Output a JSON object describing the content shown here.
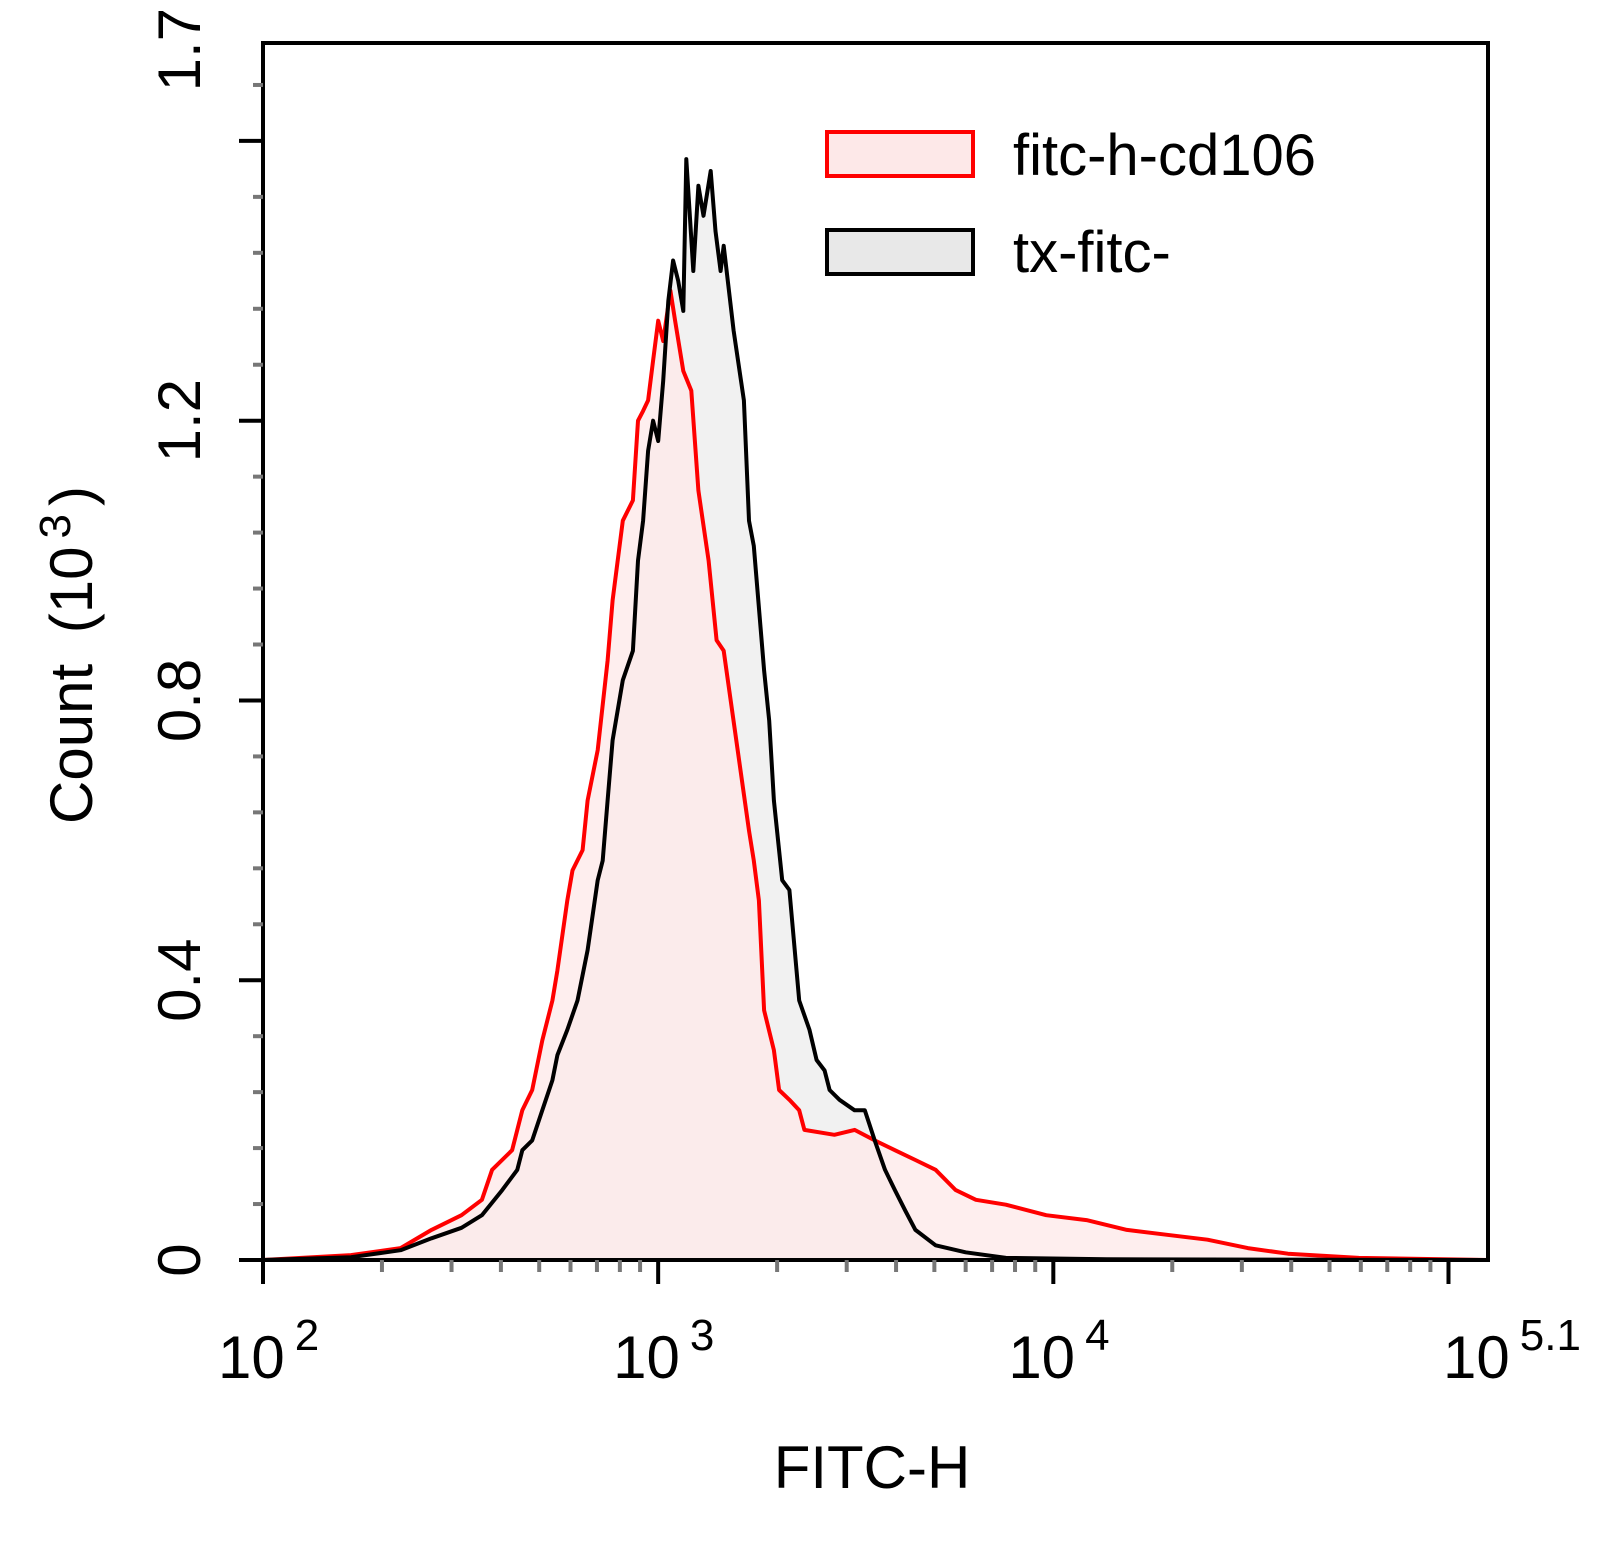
{
  "chart_data": {
    "type": "area",
    "title": "",
    "xlabel": "FITC-H",
    "ylabel": "Count",
    "ylabel_unit_base": "10",
    "ylabel_unit_exp": "3",
    "x_scale": "log",
    "xlim": [
      100,
      125893
    ],
    "ylim": [
      0,
      1.74
    ],
    "x_ticks": [
      {
        "base": "10",
        "exp": "2",
        "value": 100
      },
      {
        "base": "10",
        "exp": "3",
        "value": 1000
      },
      {
        "base": "10",
        "exp": "4",
        "value": 10000
      },
      {
        "base": "10",
        "exp": "5.1",
        "value": 125893
      }
    ],
    "y_ticks": [
      {
        "label": "0",
        "value": 0
      },
      {
        "label": "0.4",
        "value": 0.4
      },
      {
        "label": "0.8",
        "value": 0.8
      },
      {
        "label": "1.2",
        "value": 1.2
      },
      {
        "label": "1.7",
        "value": 1.74
      }
    ],
    "grid": false,
    "legend_position": "top-right",
    "series": [
      {
        "name": "fitc-h-cd106",
        "line_color": "#ff0000",
        "fill_color": "#fde8e8",
        "x": [
          100,
          167,
          223,
          267,
          318,
          358,
          380,
          427,
          453,
          480,
          509,
          540,
          556,
          589,
          607,
          644,
          663,
          703,
          745,
          767,
          814,
          863,
          889,
          916,
          943,
          971,
          1000,
          1030,
          1074,
          1104,
          1158,
          1213,
          1264,
          1342,
          1406,
          1465,
          1629,
          1698,
          1746,
          1799,
          1854,
          1963,
          2023,
          2148,
          2275,
          2344,
          2793,
          3141,
          3532,
          3972,
          4477,
          5035,
          5662,
          6368,
          7586,
          9594,
          12130,
          15350,
          19410,
          24550,
          31050,
          39260,
          59290,
          125893
        ],
        "y": [
          0,
          0.007,
          0.017,
          0.043,
          0.064,
          0.086,
          0.129,
          0.157,
          0.214,
          0.243,
          0.314,
          0.371,
          0.414,
          0.514,
          0.557,
          0.586,
          0.657,
          0.729,
          0.857,
          0.943,
          1.057,
          1.086,
          1.2,
          1.214,
          1.229,
          1.286,
          1.343,
          1.314,
          1.386,
          1.343,
          1.271,
          1.243,
          1.1,
          1.0,
          0.886,
          0.871,
          0.686,
          0.614,
          0.571,
          0.514,
          0.357,
          0.3,
          0.243,
          0.229,
          0.214,
          0.186,
          0.179,
          0.186,
          0.171,
          0.157,
          0.143,
          0.129,
          0.1,
          0.086,
          0.079,
          0.064,
          0.057,
          0.043,
          0.036,
          0.029,
          0.017,
          0.009,
          0.003,
          0
        ]
      },
      {
        "name": "tx-fitc-",
        "line_color": "#000000",
        "fill_color": "#e8e8e8",
        "x": [
          100,
          167,
          223,
          267,
          318,
          358,
          403,
          440,
          453,
          480,
          509,
          540,
          556,
          589,
          625,
          663,
          703,
          724,
          745,
          767,
          814,
          863,
          889,
          916,
          943,
          971,
          1000,
          1030,
          1061,
          1091,
          1124,
          1158,
          1178,
          1227,
          1264,
          1302,
          1358,
          1397,
          1439,
          1465,
          1552,
          1648,
          1698,
          1746,
          1854,
          1910,
          1963,
          2060,
          2148,
          2275,
          2415,
          2518,
          2637,
          2716,
          2877,
          3141,
          3334,
          3532,
          3750,
          3972,
          4217,
          4477,
          5035,
          5998,
          7586,
          13650,
          125893
        ],
        "y": [
          0,
          0.004,
          0.014,
          0.031,
          0.046,
          0.064,
          0.1,
          0.129,
          0.157,
          0.171,
          0.214,
          0.257,
          0.293,
          0.329,
          0.371,
          0.443,
          0.543,
          0.571,
          0.657,
          0.743,
          0.829,
          0.871,
          1.0,
          1.057,
          1.157,
          1.2,
          1.171,
          1.257,
          1.371,
          1.429,
          1.4,
          1.357,
          1.574,
          1.414,
          1.536,
          1.493,
          1.557,
          1.471,
          1.414,
          1.45,
          1.329,
          1.229,
          1.057,
          1.021,
          0.843,
          0.771,
          0.657,
          0.543,
          0.529,
          0.371,
          0.329,
          0.286,
          0.271,
          0.243,
          0.229,
          0.214,
          0.214,
          0.171,
          0.129,
          0.1,
          0.071,
          0.043,
          0.021,
          0.011,
          0.003,
          0.001,
          0
        ]
      }
    ]
  }
}
